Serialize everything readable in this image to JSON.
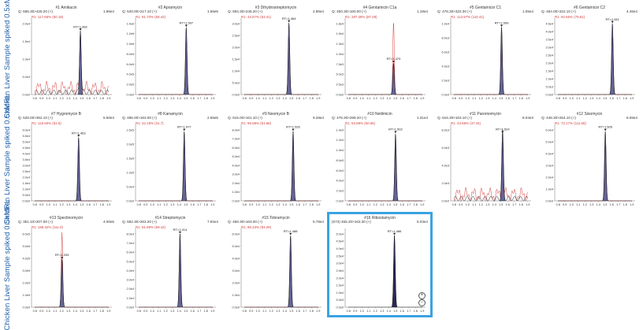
{
  "row_labels": [
    "Chicken Liver Sample spiked 0.5xMRL",
    "Chicken Liver Sample spiked 0.5xMRL",
    "Chicken Liver Sample spiked 0.5xMRL"
  ],
  "colors": {
    "peak_fill": "#3d3f7a",
    "trace": "#1a1a1a",
    "ion_ratio": "#d23c3c",
    "selected_border": "#3aa3e3"
  },
  "x_ticks": [
    "0.8",
    "0.9",
    "1.0",
    "1.1",
    "1.2",
    "1.3",
    "1.4",
    "1.5",
    "1.6",
    "1.7",
    "1.8",
    "1.9"
  ],
  "panels": [
    {
      "title": "#1 Amikacin",
      "filter": "Q: 586.30>425.20 (+)",
      "max": "1.96e4",
      "ratio": "R1: 117.66% (50.19)",
      "rt": "RT=1.482",
      "rt_x": 1.48,
      "yticks": [
        "0.0e0",
        "5.0e3",
        "1.0e4",
        "1.5e4",
        "2.0e4"
      ],
      "peak": 0.85,
      "noise": true
    },
    {
      "title": "#2 Apramycin",
      "filter": "Q: 540.00>217.10 (+)",
      "max": "1.56e5",
      "ratio": "R1: 91.70% (58.42)",
      "rt": "RT=1.507",
      "rt_x": 1.507,
      "yticks": [
        "0.0e0",
        "2.0e5",
        "4.0e5",
        "6.0e5",
        "8.0e5",
        "1.0e6",
        "1.2e6",
        "1.4e6"
      ],
      "peak": 0.9,
      "noise": false
    },
    {
      "title": "#3 Dihydrostreptomycin",
      "filter": "Q: 584.30>246.20 (+)",
      "max": "2.96e4",
      "ratio": "R1: 43.57% (53.41)",
      "rt": "RT=1.464",
      "rt_x": 1.464,
      "yticks": [
        "0.0e0",
        "5.0e3",
        "1.0e4",
        "1.5e4",
        "2.0e4",
        "2.5e4",
        "3.0e4"
      ],
      "peak": 0.96,
      "noise": false
    },
    {
      "title": "#4 Gentamicin C1a",
      "filter": "Q: 450.30>160.00 (+)",
      "max": "1.18e4",
      "ratio": "R1: 287.28% (87.29)",
      "rt": "RT=1.473",
      "rt_x": 1.473,
      "yticks": [
        "0.0e0",
        "2.5e3",
        "5.0e3",
        "7.5e3",
        "1.0e4",
        "1.3e4",
        "1.5e4",
        "1.8e4"
      ],
      "peak": 0.42,
      "noise": false,
      "tall_qual": true
    },
    {
      "title": "#5 Gentamicin C1",
      "filter": "Q: 478.30>322.30 (+)",
      "max": "1.05e4",
      "ratio": "R1: 113.97% (110.41)",
      "rt": "RT=1.509",
      "rt_x": 1.509,
      "yticks": [
        "0.0e0",
        "2.0e3",
        "4.0e3",
        "6.0e3",
        "8.0e3",
        "1.0e4"
      ],
      "peak": 0.9,
      "noise": false
    },
    {
      "title": "#6 Gentamicin C2",
      "filter": "Q: 464.00>322.10 (+)",
      "max": "4.46e4",
      "ratio": "R1: 92.66% (79.61)",
      "rt": "RT=1.611",
      "rt_x": 1.611,
      "yticks": [
        "0.0e0",
        "5.0e3",
        "1.0e4",
        "1.5e4",
        "2.0e4",
        "2.5e4",
        "3.0e4",
        "3.5e4",
        "4.0e4",
        "4.5e4"
      ],
      "peak": 0.95,
      "noise": false
    },
    {
      "title": "#7 Hygromycin B",
      "filter": "Q: 528.00>352.10 (+)",
      "max": "5.50e4",
      "ratio": "R1: 115.50% (61.5)",
      "rt": "RT=1.453",
      "rt_x": 1.453,
      "yticks": [
        "0.0e0",
        "5.0e3",
        "1.0e4",
        "1.5e4",
        "2.0e4",
        "2.5e4",
        "3.0e4",
        "3.5e4",
        "4.0e4",
        "4.5e4",
        "5.0e4",
        "5.5e4",
        "6.0e4"
      ],
      "peak": 0.85,
      "noise": false
    },
    {
      "title": "#8 Kanamycin",
      "filter": "Q: 485.00>163.00 (+)",
      "max": "2.55e5",
      "ratio": "R1: 42.18% (31.7)",
      "rt": "RT=1.477",
      "rt_x": 1.477,
      "yticks": [
        "0.0e0",
        "5.0e4",
        "1.0e5",
        "1.5e5",
        "2.0e5",
        "2.5e5"
      ],
      "peak": 0.93,
      "noise": false
    },
    {
      "title": "#9 Neomycin B",
      "filter": "Q: 615.00>161.10 (+)",
      "max": "9.28e4",
      "ratio": "R1: 96.58% (61.58)",
      "rt": "RT=1.526",
      "rt_x": 1.526,
      "yticks": [
        "0.0e0",
        "1.0e4",
        "2.0e4",
        "3.0e4",
        "4.0e4",
        "5.0e4",
        "6.0e4",
        "7.0e4",
        "8.0e4"
      ],
      "peak": 0.93,
      "noise": false
    },
    {
      "title": "#10 Netilmicin",
      "filter": "Q: 476.30>299.20 (+)",
      "max": "1.31e4",
      "ratio": "R1: 53.58% (50.06)",
      "rt": "RT=1.502",
      "rt_x": 1.502,
      "yticks": [
        "0.0e0",
        "2.0e3",
        "4.0e3",
        "6.0e3",
        "8.0e3",
        "1.0e4",
        "1.2e4",
        "1.4e4"
      ],
      "peak": 0.9,
      "noise": false
    },
    {
      "title": "#11 Paromomycin",
      "filter": "Q: 616.30>163.10 (+)",
      "max": "8.04e3",
      "ratio": "R1: 43.58% (37.44)",
      "rt": "RT=1.524",
      "rt_x": 1.524,
      "yticks": [
        "0.0e0",
        "2.0e3",
        "4.0e3",
        "6.0e3",
        "8.0e3"
      ],
      "peak": 0.9,
      "noise": true
    },
    {
      "title": "#12 Sisomycin",
      "filter": "Q: 448.30>254.10 (+)",
      "max": "6.06e4",
      "ratio": "R1: 72.17% (111.66)",
      "rt": "RT=1.505",
      "rt_x": 1.505,
      "yticks": [
        "0.0e0",
        "1.0e4",
        "2.0e4",
        "3.0e4",
        "4.0e4",
        "5.0e4",
        "6.0e4"
      ],
      "peak": 0.93,
      "noise": false
    },
    {
      "title": "#13 Spectinomycin",
      "filter": "Q: 351.10>207.00 (+)",
      "max": "4.00e5",
      "ratio": "R1: 158.32% (111.0)",
      "rt": "RT=1.205",
      "rt_x": 1.205,
      "yticks": [
        "0.0e0",
        "1.0e5",
        "2.0e5",
        "3.0e5",
        "4.0e5",
        "5.0e5",
        "6.0e5"
      ],
      "peak": 0.62,
      "noise": false,
      "tall_qual": true
    },
    {
      "title": "#14 Streptomycin",
      "filter": "Q: 582.30>263.20 (+)",
      "max": "7.92e4",
      "ratio": "R1: 51.89% (59.42)",
      "rt": "RT=1.414",
      "rt_x": 1.414,
      "yticks": [
        "0.0e0",
        "1.0e4",
        "2.0e4",
        "3.0e4",
        "4.0e4",
        "5.0e4",
        "6.0e4",
        "7.0e4",
        "8.0e4"
      ],
      "peak": 0.95,
      "noise": false
    },
    {
      "title": "#15 Tobramycin",
      "filter": "Q: 468.30>163.00 (+)",
      "max": "5.79e4",
      "ratio": "R1: 96.23% (83.29)",
      "rt": "RT=1.488",
      "rt_x": 1.488,
      "yticks": [
        "0.0e0",
        "1.0e4",
        "2.0e4",
        "3.0e4",
        "4.0e4",
        "5.0e4",
        "6.0e4"
      ],
      "peak": 0.93,
      "noise": false
    },
    {
      "title": "#16 Ribostamycin",
      "filter": "(573) 455.20>163.30 (+)",
      "max": "5.03e4",
      "ratio": "",
      "rt": "RT=1.486",
      "rt_x": 1.486,
      "yticks": [
        "0.0e0",
        "5.0e3",
        "1.0e4",
        "1.5e4",
        "2.0e4",
        "2.5e4",
        "3.0e4",
        "3.5e4",
        "4.0e4",
        "4.5e4",
        "5.0e4"
      ],
      "peak": 0.93,
      "noise": false,
      "selected": true,
      "dark": true
    }
  ]
}
